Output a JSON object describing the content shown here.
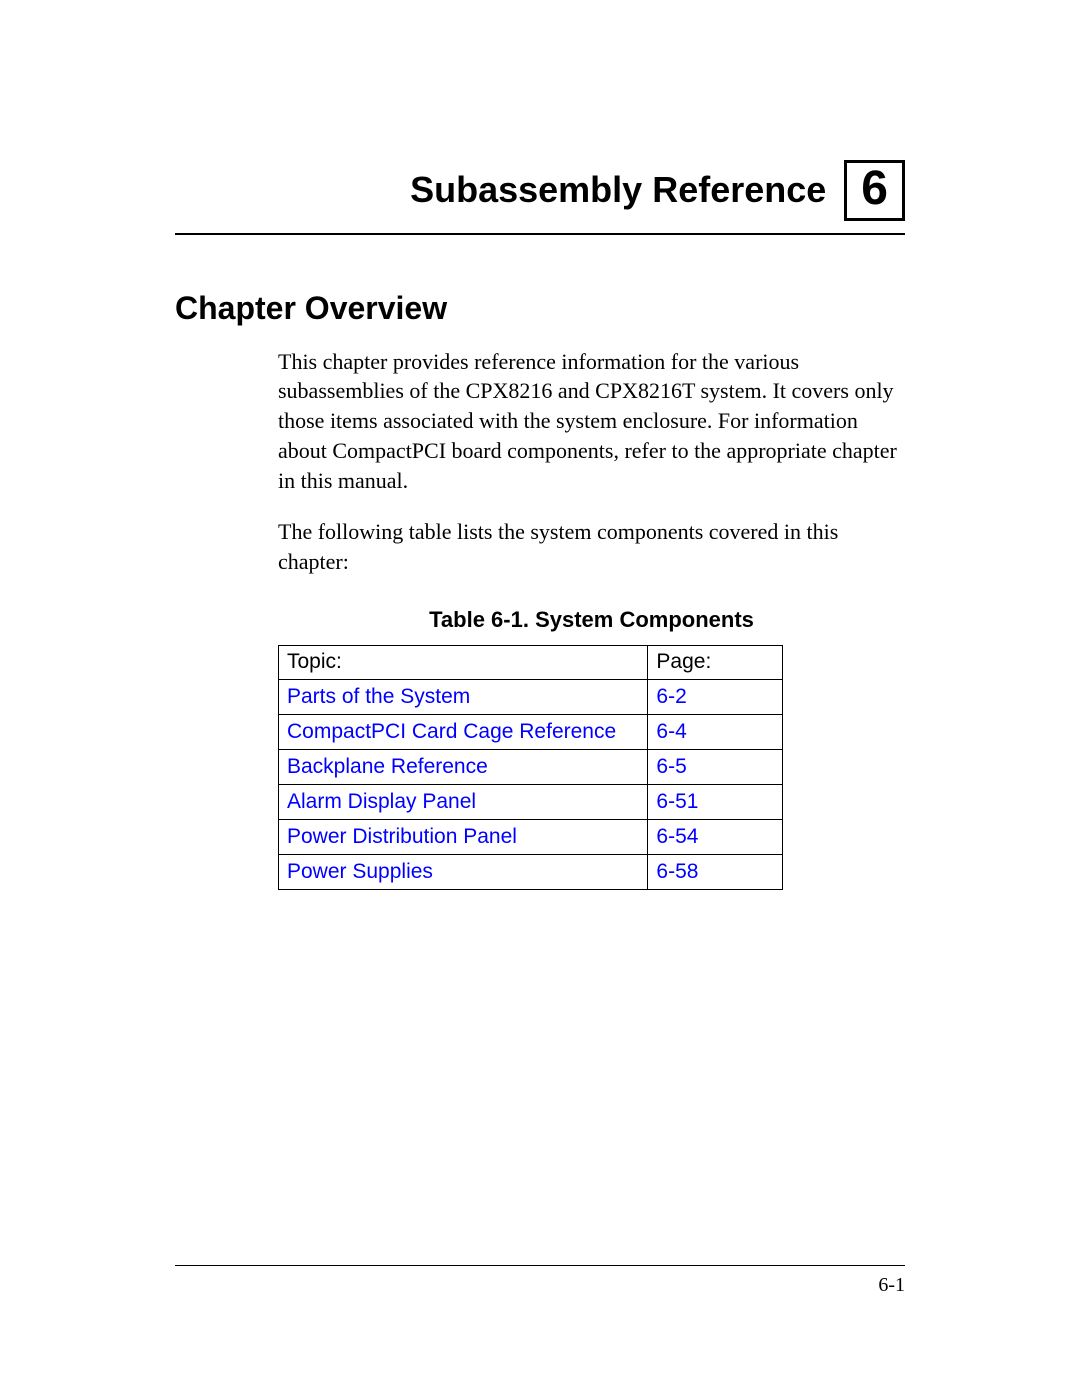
{
  "chapter": {
    "title": "Subassembly Reference",
    "number": "6"
  },
  "section": {
    "heading": "Chapter Overview",
    "paragraph1": "This chapter provides reference information for the various subassemblies of the CPX8216 and CPX8216T system. It covers only those items associated with the system enclosure. For information about CompactPCI board components, refer to the appropriate chapter in this manual.",
    "paragraph2": "The following table lists the system components covered in this chapter:"
  },
  "table": {
    "caption": "Table 6-1. System Components",
    "columns": {
      "topic": "Topic:",
      "page": "Page:"
    },
    "rows": [
      {
        "topic": "Parts of the System",
        "page": "6-2"
      },
      {
        "topic": "CompactPCI Card Cage Reference",
        "page": "6-4"
      },
      {
        "topic": "Backplane Reference",
        "page": "6-5"
      },
      {
        "topic": "Alarm Display Panel",
        "page": "6-51"
      },
      {
        "topic": "Power Distribution Panel",
        "page": "6-54"
      },
      {
        "topic": "Power Supplies",
        "page": "6-58"
      }
    ],
    "link_color": "#0000ff"
  },
  "footer": {
    "page_number": "6-1"
  }
}
